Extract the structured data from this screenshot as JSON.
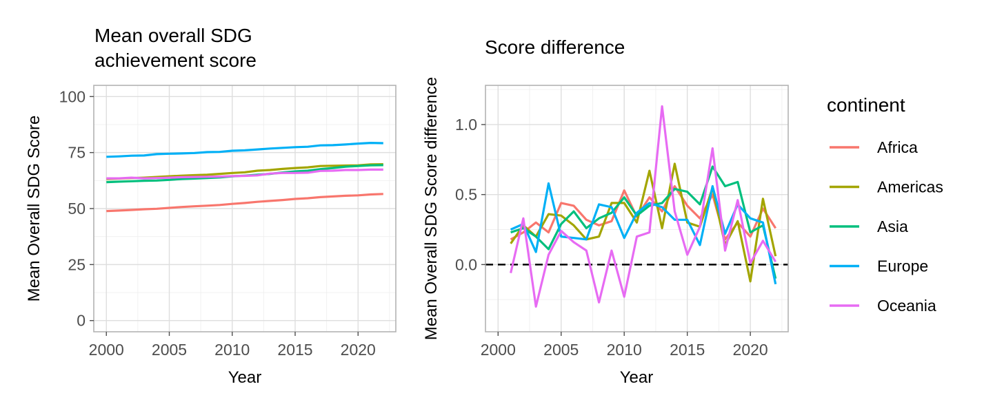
{
  "legend": {
    "title": "continent",
    "items": [
      {
        "name": "Africa",
        "color": "#F8766D"
      },
      {
        "name": "Americas",
        "color": "#A3A500"
      },
      {
        "name": "Asia",
        "color": "#00BF7D"
      },
      {
        "name": "Europe",
        "color": "#00B0F6"
      },
      {
        "name": "Oceania",
        "color": "#E76BF3"
      }
    ]
  },
  "chart_data": [
    {
      "type": "line",
      "title": "Mean overall SDG achievement score",
      "title_lines": [
        "Mean overall SDG",
        "achievement score"
      ],
      "xlabel": "Year",
      "ylabel": "Mean Overall SDG Score",
      "xlim": [
        1999,
        2023
      ],
      "ylim": [
        -5,
        105
      ],
      "xticks": [
        2000,
        2005,
        2010,
        2015,
        2020
      ],
      "xtick_labels": [
        "2000",
        "2005",
        "2010",
        "2015",
        "2020"
      ],
      "yticks": [
        0,
        25,
        50,
        75,
        100
      ],
      "ytick_labels": [
        "0",
        "25",
        "50",
        "75",
        "100"
      ],
      "grid": true,
      "x": [
        2000,
        2001,
        2002,
        2003,
        2004,
        2005,
        2006,
        2007,
        2008,
        2009,
        2010,
        2011,
        2012,
        2013,
        2014,
        2015,
        2016,
        2017,
        2018,
        2019,
        2020,
        2021,
        2022
      ],
      "series": [
        {
          "name": "Africa",
          "values": [
            48.9,
            49.1,
            49.4,
            49.7,
            49.9,
            50.3,
            50.7,
            51.0,
            51.3,
            51.6,
            52.1,
            52.5,
            53.0,
            53.4,
            53.8,
            54.3,
            54.6,
            55.1,
            55.4,
            55.7,
            55.9,
            56.3,
            56.5
          ]
        },
        {
          "name": "Americas",
          "values": [
            63.2,
            63.4,
            63.6,
            63.8,
            64.1,
            64.4,
            64.7,
            64.9,
            65.1,
            65.5,
            65.9,
            66.2,
            66.9,
            67.2,
            67.7,
            68.1,
            68.4,
            69.0,
            69.1,
            69.2,
            69.3,
            69.7,
            69.8
          ]
        },
        {
          "name": "Asia",
          "values": [
            61.8,
            62.0,
            62.2,
            62.4,
            62.5,
            62.8,
            63.2,
            63.4,
            63.6,
            63.9,
            64.4,
            64.7,
            65.1,
            65.5,
            66.1,
            66.6,
            66.9,
            67.6,
            68.1,
            68.7,
            69.0,
            69.3,
            69.4
          ]
        },
        {
          "name": "Europe",
          "values": [
            73.1,
            73.3,
            73.6,
            73.7,
            74.3,
            74.5,
            74.6,
            74.8,
            75.2,
            75.3,
            75.8,
            76.0,
            76.4,
            76.8,
            77.1,
            77.4,
            77.6,
            78.2,
            78.3,
            78.6,
            79.0,
            79.3,
            79.2
          ]
        },
        {
          "name": "Oceania",
          "values": [
            63.5,
            63.5,
            63.8,
            63.5,
            63.6,
            63.8,
            64.0,
            64.1,
            64.2,
            64.3,
            64.5,
            64.6,
            64.8,
            65.6,
            65.9,
            65.9,
            66.0,
            66.8,
            66.9,
            67.2,
            67.2,
            67.4,
            67.4
          ]
        }
      ]
    },
    {
      "type": "line",
      "title": "Score difference",
      "xlabel": "Year",
      "ylabel": "Mean Overall SDG Score difference",
      "xlim": [
        1999,
        2023
      ],
      "ylim": [
        -0.48,
        1.28
      ],
      "xticks": [
        2000,
        2005,
        2010,
        2015,
        2020
      ],
      "xtick_labels": [
        "2000",
        "2005",
        "2010",
        "2015",
        "2020"
      ],
      "yticks": [
        0.0,
        0.5,
        1.0
      ],
      "ytick_labels": [
        "0.0",
        "0.5",
        "1.0"
      ],
      "reference_line": {
        "y": 0,
        "style": "dashed",
        "color": "#000000"
      },
      "grid": true,
      "x": [
        2001,
        2002,
        2003,
        2004,
        2005,
        2006,
        2007,
        2008,
        2009,
        2010,
        2011,
        2012,
        2013,
        2014,
        2015,
        2016,
        2017,
        2018,
        2019,
        2020,
        2021,
        2022
      ],
      "series": [
        {
          "name": "Africa",
          "values": [
            0.18,
            0.23,
            0.3,
            0.23,
            0.44,
            0.42,
            0.32,
            0.28,
            0.31,
            0.53,
            0.34,
            0.48,
            0.38,
            0.56,
            0.42,
            0.33,
            0.5,
            0.18,
            0.3,
            0.2,
            0.4,
            0.26
          ]
        },
        {
          "name": "Americas",
          "values": [
            0.15,
            0.28,
            0.2,
            0.36,
            0.35,
            0.28,
            0.18,
            0.2,
            0.44,
            0.44,
            0.3,
            0.67,
            0.26,
            0.72,
            0.3,
            0.27,
            0.55,
            0.14,
            0.31,
            -0.12,
            0.47,
            0.06
          ]
        },
        {
          "name": "Asia",
          "values": [
            0.23,
            0.26,
            0.2,
            0.11,
            0.29,
            0.38,
            0.26,
            0.33,
            0.37,
            0.48,
            0.35,
            0.42,
            0.44,
            0.54,
            0.52,
            0.43,
            0.7,
            0.56,
            0.59,
            0.23,
            0.28,
            -0.1
          ]
        },
        {
          "name": "Europe",
          "values": [
            0.25,
            0.29,
            0.09,
            0.58,
            0.2,
            0.19,
            0.18,
            0.43,
            0.41,
            0.19,
            0.37,
            0.44,
            0.41,
            0.32,
            0.32,
            0.14,
            0.56,
            0.22,
            0.43,
            0.33,
            0.3,
            -0.14
          ]
        },
        {
          "name": "Oceania",
          "values": [
            -0.06,
            0.33,
            -0.3,
            0.07,
            0.24,
            0.16,
            0.1,
            -0.27,
            0.1,
            -0.23,
            0.2,
            0.23,
            1.13,
            0.38,
            0.07,
            0.27,
            0.83,
            0.1,
            0.46,
            0.01,
            0.17,
            0.02
          ]
        }
      ]
    }
  ]
}
